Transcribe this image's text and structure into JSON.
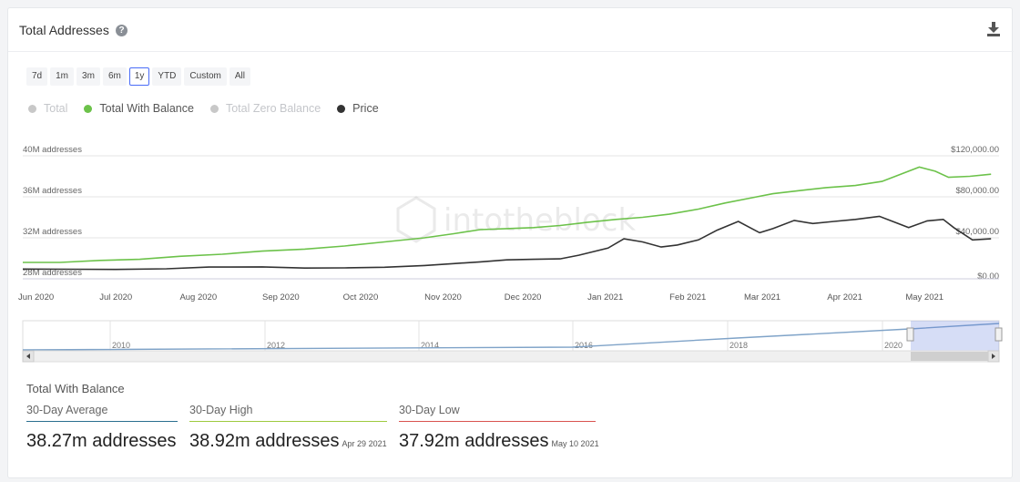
{
  "header": {
    "title": "Total Addresses",
    "help_icon": "question-circle-icon",
    "download_icon": "download-icon"
  },
  "ranges": [
    {
      "label": "7d"
    },
    {
      "label": "1m"
    },
    {
      "label": "3m"
    },
    {
      "label": "6m"
    },
    {
      "label": "1y",
      "active": true
    },
    {
      "label": "YTD"
    },
    {
      "label": "Custom"
    },
    {
      "label": "All"
    }
  ],
  "legend": [
    {
      "label": "Total",
      "color": "#c8c8c8",
      "on": false
    },
    {
      "label": "Total With Balance",
      "color": "#6cc24a",
      "on": true
    },
    {
      "label": "Total Zero Balance",
      "color": "#c8c8c8",
      "on": false
    },
    {
      "label": "Price",
      "color": "#333333",
      "on": true
    }
  ],
  "watermark": "intotheblock",
  "chart_data": {
    "type": "line",
    "x_ticks": [
      "Jun 2020",
      "Jul 2020",
      "Aug 2020",
      "Sep 2020",
      "Oct 2020",
      "Nov 2020",
      "Dec 2020",
      "Jan 2021",
      "Feb 2021",
      "Mar 2021",
      "Apr 2021",
      "May 2021"
    ],
    "y_left": {
      "ticks": [
        "40M addresses",
        "36M addresses",
        "32M addresses",
        "28M addresses"
      ],
      "values": [
        40,
        36,
        32,
        28
      ],
      "range": [
        28,
        40
      ]
    },
    "y_right": {
      "ticks": [
        "$120,000.00",
        "$80,000.00",
        "$40,000.00",
        "$0.00"
      ],
      "values": [
        120000,
        80000,
        40000,
        0
      ],
      "range": [
        0,
        120000
      ]
    },
    "series": [
      {
        "name": "Total With Balance",
        "color": "#6cc24a",
        "axis": "left",
        "x": [
          "2020-05-27",
          "2020-06-10",
          "2020-06-25",
          "2020-07-10",
          "2020-07-25",
          "2020-08-10",
          "2020-08-25",
          "2020-09-10",
          "2020-09-25",
          "2020-10-10",
          "2020-10-25",
          "2020-11-05",
          "2020-11-15",
          "2020-11-25",
          "2020-12-05",
          "2020-12-15",
          "2020-12-25",
          "2021-01-05",
          "2021-01-15",
          "2021-01-25",
          "2021-02-05",
          "2021-02-15",
          "2021-02-25",
          "2021-03-05",
          "2021-03-15",
          "2021-03-25",
          "2021-04-05",
          "2021-04-15",
          "2021-04-20",
          "2021-04-29",
          "2021-05-05",
          "2021-05-10",
          "2021-05-18",
          "2021-05-26"
        ],
        "values": [
          29.6,
          29.6,
          29.8,
          29.9,
          30.2,
          30.4,
          30.7,
          30.9,
          31.2,
          31.6,
          32.0,
          32.4,
          32.8,
          32.9,
          33.0,
          33.2,
          33.5,
          33.8,
          34.0,
          34.3,
          34.8,
          35.4,
          35.9,
          36.3,
          36.6,
          36.9,
          37.1,
          37.5,
          38.0,
          38.9,
          38.5,
          37.9,
          38.0,
          38.2
        ]
      },
      {
        "name": "Price",
        "color": "#333333",
        "axis": "right",
        "x": [
          "2020-05-27",
          "2020-06-15",
          "2020-07-01",
          "2020-07-20",
          "2020-08-05",
          "2020-08-25",
          "2020-09-10",
          "2020-09-25",
          "2020-10-10",
          "2020-10-25",
          "2020-11-05",
          "2020-11-15",
          "2020-11-25",
          "2020-12-05",
          "2020-12-15",
          "2020-12-22",
          "2021-01-02",
          "2021-01-08",
          "2021-01-15",
          "2021-01-22",
          "2021-01-28",
          "2021-02-05",
          "2021-02-12",
          "2021-02-20",
          "2021-02-28",
          "2021-03-05",
          "2021-03-13",
          "2021-03-20",
          "2021-03-28",
          "2021-04-05",
          "2021-04-14",
          "2021-04-20",
          "2021-04-25",
          "2021-05-02",
          "2021-05-08",
          "2021-05-12",
          "2021-05-19",
          "2021-05-26"
        ],
        "values": [
          9500,
          9300,
          9200,
          9800,
          11500,
          11600,
          10500,
          10700,
          11300,
          13000,
          14800,
          16500,
          18500,
          19000,
          19500,
          23000,
          30000,
          39000,
          36000,
          31000,
          33000,
          38000,
          47500,
          56000,
          45000,
          49000,
          57000,
          54000,
          56000,
          58000,
          61000,
          55000,
          50000,
          56500,
          58000,
          50000,
          38000,
          39000
        ]
      }
    ]
  },
  "navigator": {
    "x_ticks": [
      "2010",
      "2012",
      "2014",
      "2016",
      "2018",
      "2020"
    ]
  },
  "stats": {
    "title": "Total With Balance",
    "items": [
      {
        "label": "30-Day Average",
        "value": "38.27m addresses",
        "date": "",
        "color": "#2b6f8f"
      },
      {
        "label": "30-Day High",
        "value": "38.92m addresses",
        "date": "Apr 29 2021",
        "color": "#9ecb3f"
      },
      {
        "label": "30-Day Low",
        "value": "37.92m addresses",
        "date": "May 10 2021",
        "color": "#d9534f"
      }
    ]
  }
}
